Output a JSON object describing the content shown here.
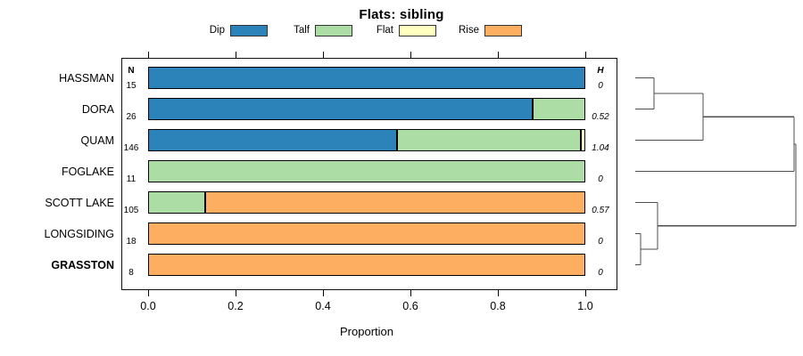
{
  "chart_data": {
    "type": "bar",
    "variant": "horizontal-stacked-proportion-with-dendrogram",
    "title": "Flats: sibling",
    "xlabel": "Proportion",
    "xlim": [
      0.0,
      1.0
    ],
    "xticks": [
      "0.0",
      "0.2",
      "0.4",
      "0.6",
      "0.8",
      "1.0"
    ],
    "grid": false,
    "legend_position": "top",
    "legend": [
      {
        "label": "Dip",
        "color": "#2B83BA"
      },
      {
        "label": "Talf",
        "color": "#ABDDA4"
      },
      {
        "label": "Flat",
        "color": "#FFFFBF"
      },
      {
        "label": "Rise",
        "color": "#FDAE61"
      }
    ],
    "categories": [
      "HASSMAN",
      "DORA",
      "QUAM",
      "FOGLAKE",
      "SCOTT LAKE",
      "LONGSIDING",
      "GRASSTON"
    ],
    "bold_categories": [
      "GRASSTON"
    ],
    "series": [
      {
        "name": "Dip",
        "values": [
          1.0,
          0.88,
          0.57,
          0.0,
          0.0,
          0.0,
          0.0
        ]
      },
      {
        "name": "Talf",
        "values": [
          0.0,
          0.12,
          0.42,
          1.0,
          0.13,
          0.0,
          0.0
        ]
      },
      {
        "name": "Flat",
        "values": [
          0.0,
          0.0,
          0.01,
          0.0,
          0.0,
          0.0,
          0.0
        ]
      },
      {
        "name": "Rise",
        "values": [
          0.0,
          0.0,
          0.0,
          0.0,
          0.87,
          1.0,
          1.0
        ]
      }
    ],
    "n_column": {
      "header": "N",
      "values": [
        "15",
        "26",
        "146",
        "11",
        "105",
        "18",
        "8"
      ]
    },
    "h_column": {
      "header": "H",
      "values": [
        "0",
        "0.52",
        "1.04",
        "0",
        "0.57",
        "0",
        "0"
      ]
    },
    "dendrogram": {
      "leaf_order": [
        "HASSMAN",
        "DORA",
        "QUAM",
        "FOGLAKE",
        "SCOTT LAKE",
        "LONGSIDING",
        "GRASSTON"
      ],
      "merges": [
        {
          "a": "HASSMAN",
          "b": "DORA",
          "pos": 0.117
        },
        {
          "a": "#0",
          "b": "QUAM",
          "pos": 0.422
        },
        {
          "a": "#1",
          "b": "FOGLAKE",
          "pos": 0.989
        },
        {
          "a": "LONGSIDING",
          "b": "GRASSTON",
          "pos": 0.033
        },
        {
          "a": "#3",
          "b": "SCOTT LAKE",
          "pos": 0.139
        },
        {
          "a": "#2",
          "b": "#4",
          "pos": 1.0
        }
      ],
      "line_color": "#4d4d4d"
    }
  }
}
